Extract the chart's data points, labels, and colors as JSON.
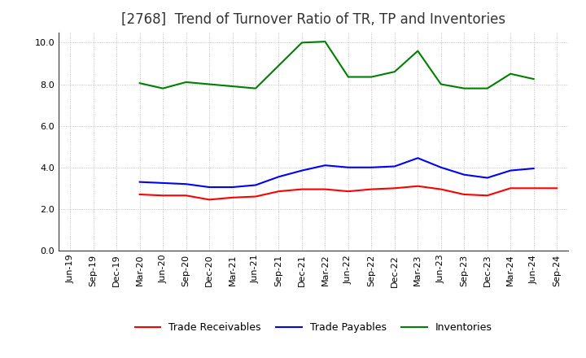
{
  "title": "[2768]  Trend of Turnover Ratio of TR, TP and Inventories",
  "ylim": [
    0.0,
    10.5
  ],
  "yticks": [
    0.0,
    2.0,
    4.0,
    6.0,
    8.0,
    10.0
  ],
  "x_labels": [
    "Jun-19",
    "Sep-19",
    "Dec-19",
    "Mar-20",
    "Jun-20",
    "Sep-20",
    "Dec-20",
    "Mar-21",
    "Jun-21",
    "Sep-21",
    "Dec-21",
    "Mar-22",
    "Jun-22",
    "Sep-22",
    "Dec-22",
    "Mar-23",
    "Jun-23",
    "Sep-23",
    "Dec-23",
    "Mar-24",
    "Jun-24",
    "Sep-24"
  ],
  "trade_receivables": [
    null,
    null,
    null,
    2.7,
    2.65,
    2.65,
    2.45,
    2.55,
    2.6,
    2.85,
    2.95,
    2.95,
    2.85,
    2.95,
    3.0,
    3.1,
    2.95,
    2.7,
    2.65,
    3.0,
    3.0,
    3.0
  ],
  "trade_payables": [
    null,
    null,
    null,
    3.3,
    3.25,
    3.2,
    3.05,
    3.05,
    3.15,
    3.55,
    3.85,
    4.1,
    4.0,
    4.0,
    4.05,
    4.45,
    4.0,
    3.65,
    3.5,
    3.85,
    3.95,
    null
  ],
  "inventories": [
    null,
    null,
    null,
    8.05,
    7.8,
    8.1,
    8.0,
    7.9,
    7.8,
    8.9,
    10.0,
    10.05,
    8.35,
    8.35,
    8.6,
    9.6,
    8.0,
    7.8,
    7.8,
    8.5,
    8.25,
    null
  ],
  "tr_color": "#ff0000",
  "tp_color": "#0000ff",
  "inv_color": "#008000",
  "background_color": "#ffffff",
  "grid_color": "#b0b0b0",
  "title_fontsize": 12,
  "legend_fontsize": 9,
  "tick_fontsize": 8
}
